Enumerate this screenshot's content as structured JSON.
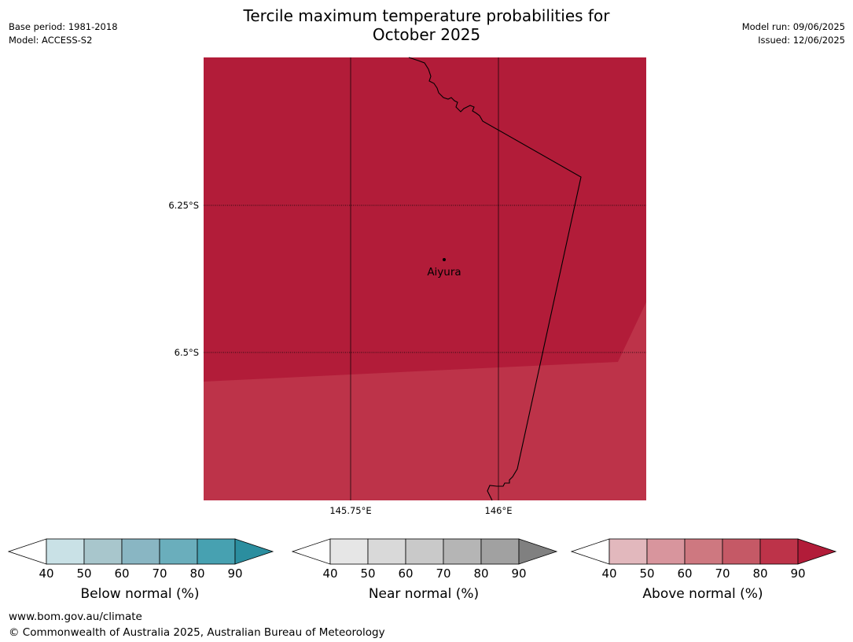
{
  "header": {
    "title_line1": "Tercile maximum temperature probabilities for",
    "title_line2": "October 2025",
    "base_period": "Base period: 1981-2018",
    "model": "Model: ACCESS-S2",
    "model_run": "Model run: 09/06/2025",
    "issued": "Issued: 12/06/2025"
  },
  "map": {
    "latitude_labels": [
      "6.25°S",
      "6.5°S"
    ],
    "longitude_labels": [
      "145.75°E",
      "146°E"
    ],
    "place": {
      "name": "Aiyura"
    },
    "colors": {
      "region_high": "#b21c39",
      "region_lower": "#bd3349",
      "boundary": "#000000"
    }
  },
  "legends": [
    {
      "title": "Below normal (%)",
      "ticks": [
        "40",
        "50",
        "60",
        "70",
        "80",
        "90"
      ],
      "colors": [
        "#ffffff",
        "#c9e1e6",
        "#a8c6cc",
        "#89b6c3",
        "#6aaebc",
        "#47a1b1",
        "#2b8e9f"
      ]
    },
    {
      "title": "Near normal (%)",
      "ticks": [
        "40",
        "50",
        "60",
        "70",
        "80",
        "90"
      ],
      "colors": [
        "#ffffff",
        "#e6e6e6",
        "#d9d9d9",
        "#c9c9c9",
        "#b5b5b5",
        "#a1a1a1",
        "#808080"
      ]
    },
    {
      "title": "Above normal (%)",
      "ticks": [
        "40",
        "50",
        "60",
        "70",
        "80",
        "90"
      ],
      "colors": [
        "#ffffff",
        "#e2b8bd",
        "#d8959d",
        "#ce7880",
        "#c55966",
        "#bd3349",
        "#b21c39"
      ]
    }
  ],
  "footer": {
    "url": "www.bom.gov.au/climate",
    "copyright": "© Commonwealth of Australia 2025, Australian Bureau of Meteorology"
  }
}
